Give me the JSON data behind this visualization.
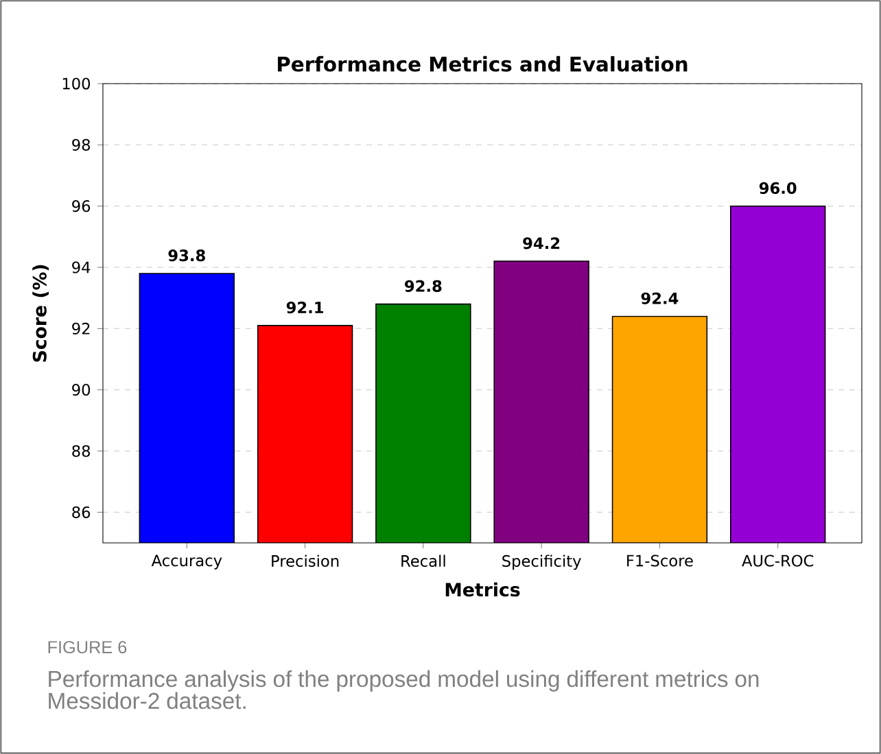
{
  "chart_data": {
    "type": "bar",
    "title": "Performance Metrics and Evaluation",
    "xlabel": "Metrics",
    "ylabel": "Score (%)",
    "categories": [
      "Accuracy",
      "Precision",
      "Recall",
      "Specificity",
      "F1-Score",
      "AUC-ROC"
    ],
    "values": [
      93.8,
      92.1,
      92.8,
      94.2,
      92.4,
      96.0
    ],
    "colors": [
      "#0000ff",
      "#ff0000",
      "#008000",
      "#800080",
      "#ffa500",
      "#9400d3"
    ],
    "ylim": [
      85,
      100
    ],
    "yticks": [
      86,
      88,
      90,
      92,
      94,
      96,
      98,
      100
    ],
    "value_labels": [
      "93.8",
      "92.1",
      "92.8",
      "94.2",
      "92.4",
      "96.0"
    ],
    "grid": "y",
    "annotations": [
      "FIGURE 6",
      "Performance analysis of the proposed model using different metrics on Messidor-2 dataset."
    ]
  }
}
